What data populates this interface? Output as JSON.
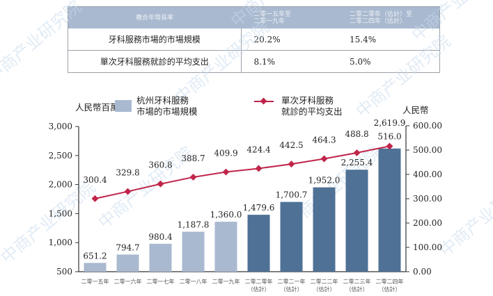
{
  "table": {
    "headers": [
      "複合年增長率",
      "二零一五年至\n二零一九年",
      "二零二零年（估計）至\n二零二四年（估計）"
    ],
    "header_lines": {
      "c0": "複合年增長率",
      "c1a": "二零一五年至",
      "c1b": "二零一九年",
      "c2a": "二零二零年（估計）至",
      "c2b": "二零二四年（估計）"
    },
    "rows": [
      {
        "label": "牙科服務市場的市場規模",
        "v1": "20.2%",
        "v2": "15.4%"
      },
      {
        "label": "單次牙科服務就診的平均支出",
        "v1": "8.1%",
        "v2": "5.0%"
      }
    ]
  },
  "chart_data": {
    "type": "bar",
    "title": "",
    "categories": [
      "二零一五年",
      "二零一六年",
      "二零一七年",
      "二零一八年",
      "二零一九年",
      "二零二零年（估計）",
      "二零二一年（估計）",
      "二零二二年（估計）",
      "二零二三年（估計）",
      "二零二四年（估計）"
    ],
    "category_lines": [
      [
        "二零一五年",
        ""
      ],
      [
        "二零一六年",
        ""
      ],
      [
        "二零一七年",
        ""
      ],
      [
        "二零一八年",
        ""
      ],
      [
        "二零一九年",
        ""
      ],
      [
        "二零二零年",
        "（估計）"
      ],
      [
        "二零二一年",
        "（估計）"
      ],
      [
        "二零二二年",
        "（估計）"
      ],
      [
        "二零二三年",
        "（估計）"
      ],
      [
        "二零二四年",
        "（估計）"
      ]
    ],
    "series": [
      {
        "name": "杭州牙科服務市場的市場規模",
        "type": "bar",
        "axis": "left",
        "values": [
          651.2,
          794.7,
          980.4,
          1187.8,
          1360.0,
          1479.6,
          1700.7,
          1952.0,
          2255.4,
          2619.9
        ],
        "labels": [
          "651.2",
          "794.7",
          "980.4",
          "1,187.8",
          "1,360.0",
          "1,479.6",
          "1,700.7",
          "1,952.0",
          "2,255.4",
          "2,619.9"
        ]
      },
      {
        "name": "單次牙科服務就診的平均支出",
        "type": "line",
        "axis": "right",
        "values": [
          300.4,
          329.8,
          360.8,
          388.7,
          409.9,
          424.4,
          442.5,
          464.3,
          488.8,
          516.0
        ],
        "labels": [
          "300.4",
          "329.8",
          "360.8",
          "388.7",
          "409.9",
          "424.4",
          "442.5",
          "464.3",
          "488.8",
          "516.0"
        ]
      }
    ],
    "ylabel": "人民幣百萬元",
    "ylabel_right": "人民幣",
    "ylim": [
      500,
      3000
    ],
    "ylim_right": [
      0,
      600
    ],
    "yticks": [
      "3,000",
      "2,500",
      "2,000",
      "1,500",
      "1,000",
      "500"
    ],
    "yticks_right": [
      "600.00",
      "500.00",
      "400.00",
      "300.00",
      "200.00",
      "100.00",
      "0.00"
    ],
    "legend": {
      "bar_line1": "杭州牙科服務",
      "bar_line2": "市場的市場規模",
      "line_line1": "單次牙科服務",
      "line_line2": "就診的平均支出"
    },
    "colors": {
      "actual_bar": "#a9b9cf",
      "forecast_bar": "#4f7196",
      "line": "#c0254a",
      "table_header": "#a9b9cf"
    },
    "grid": false,
    "legend_position": "top"
  },
  "watermark": "中商产业研究院"
}
